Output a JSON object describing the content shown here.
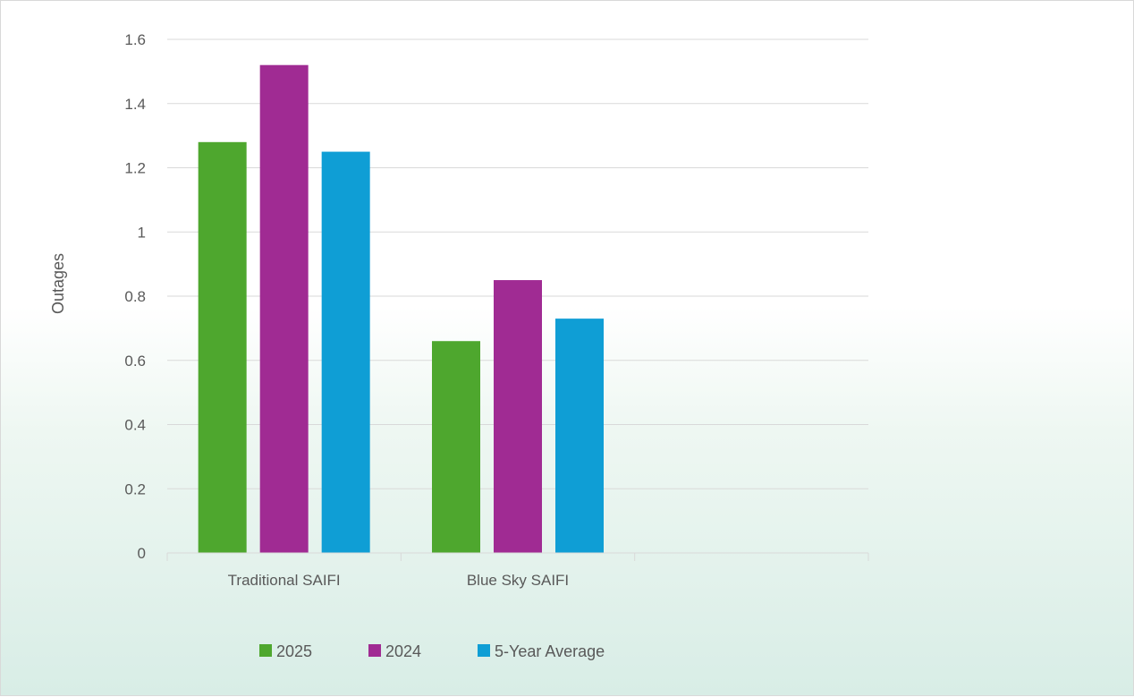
{
  "colors": {
    "2025": "#4ea72e",
    "2024": "#a02b93",
    "5-Year Average": "#0f9ed5"
  },
  "chart_data": {
    "type": "bar",
    "title": "",
    "xlabel": "",
    "ylabel": "Outages",
    "ylim": [
      0,
      1.6
    ],
    "yticks": [
      "0",
      "0.2",
      "0.4",
      "0.6",
      "0.8",
      "1",
      "1.2",
      "1.4",
      "1.6"
    ],
    "categories": [
      "Traditional SAIFI",
      "Blue Sky SAIFI",
      ""
    ],
    "series": [
      {
        "name": "2025",
        "values": [
          1.28,
          0.66,
          null
        ]
      },
      {
        "name": "2024",
        "values": [
          1.52,
          0.85,
          null
        ]
      },
      {
        "name": "5-Year Average",
        "values": [
          1.25,
          0.73,
          null
        ]
      }
    ],
    "grid": true,
    "legend": "bottom"
  }
}
